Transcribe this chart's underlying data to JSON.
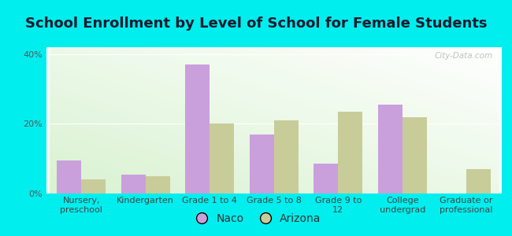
{
  "title": "School Enrollment by Level of School for Female Students",
  "categories": [
    "Nursery,\npreschool",
    "Kindergarten",
    "Grade 1 to 4",
    "Grade 5 to 8",
    "Grade 9 to\n12",
    "College\nundergrad",
    "Graduate or\nprofessional"
  ],
  "naco_values": [
    9.5,
    5.5,
    37.0,
    17.0,
    8.5,
    25.5,
    0
  ],
  "arizona_values": [
    4.0,
    5.0,
    20.0,
    21.0,
    23.5,
    22.0,
    7.0
  ],
  "naco_color": "#c9a0dc",
  "arizona_color": "#c8cc99",
  "background_outer": "#00eeee",
  "ylim": [
    0,
    42
  ],
  "yticks": [
    0,
    20,
    40
  ],
  "ytick_labels": [
    "0%",
    "20%",
    "40%"
  ],
  "legend_labels": [
    "Naco",
    "Arizona"
  ],
  "watermark": "City-Data.com",
  "bar_width": 0.38,
  "title_fontsize": 13,
  "tick_fontsize": 8,
  "legend_fontsize": 10
}
